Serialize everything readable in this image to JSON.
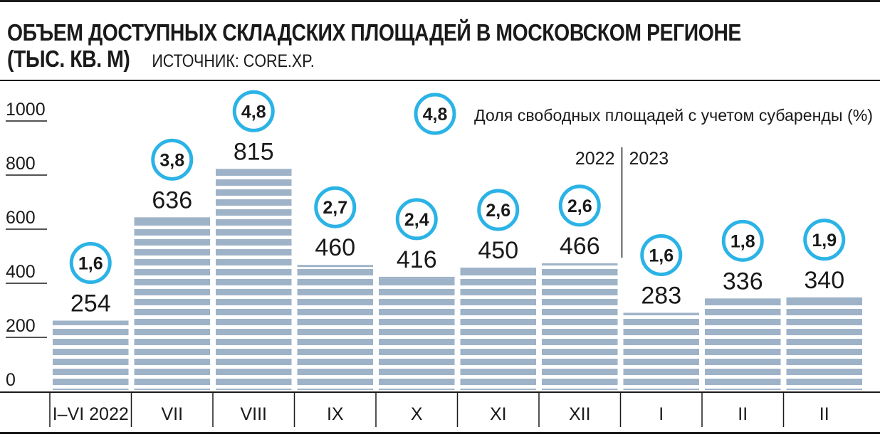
{
  "header": {
    "title_line1": "ОБЪЕМ ДОСТУПНЫХ СКЛАДСКИХ ПЛОЩАДЕЙ В МОСКОВСКОМ РЕГИОНЕ",
    "title_line2": "(ТЫС. КВ. М)",
    "source": "ИСТОЧНИК: CORE.XP."
  },
  "legend": {
    "badge": "4,8",
    "text": "Доля свободных площадей с учетом субаренды (%)"
  },
  "year_divider": {
    "left": "2022",
    "right": "2023"
  },
  "colors": {
    "bar": "#9fb3c8",
    "circle": "#2bb3e6",
    "ink": "#1a1a1a"
  },
  "chart_data": {
    "type": "bar",
    "ylim": [
      0,
      1000
    ],
    "yticks": [
      "0",
      "200",
      "400",
      "600",
      "800",
      "1000"
    ],
    "ytick_values": [
      0,
      200,
      400,
      600,
      800,
      1000
    ],
    "categories": [
      "I–VI 2022",
      "VII",
      "VIII",
      "IX",
      "X",
      "XI",
      "XII",
      "I",
      "II",
      "II"
    ],
    "values": [
      254,
      636,
      815,
      460,
      416,
      450,
      466,
      283,
      336,
      340
    ],
    "value_labels": [
      "254",
      "636",
      "815",
      "460",
      "416",
      "450",
      "466",
      "283",
      "336",
      "340"
    ],
    "vacancy_rate_labels": [
      "1,6",
      "3,8",
      "4,8",
      "2,7",
      "2,4",
      "2,6",
      "2,6",
      "1,6",
      "1,8",
      "1,9"
    ],
    "vacancy_rate": [
      1.6,
      3.8,
      4.8,
      2.7,
      2.4,
      2.6,
      2.6,
      1.6,
      1.8,
      1.9
    ]
  }
}
